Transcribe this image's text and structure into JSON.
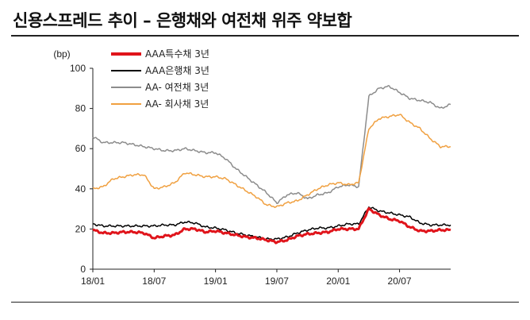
{
  "title": "신용스프레드 추이 – 은행채와 여전채 위주 약보합",
  "chart_data": {
    "type": "line",
    "ylabel": "(bp)",
    "ylim": [
      0,
      100
    ],
    "yticks": [
      0,
      20,
      40,
      60,
      80,
      100
    ],
    "xlim": [
      "2018-01",
      "2020-12"
    ],
    "xticks": [
      "18/01",
      "18/07",
      "19/01",
      "19/07",
      "20/01",
      "20/07"
    ],
    "legend_position": "top-left",
    "grid": false,
    "x": [
      "2018-01",
      "2018-02",
      "2018-03",
      "2018-04",
      "2018-05",
      "2018-06",
      "2018-07",
      "2018-08",
      "2018-09",
      "2018-10",
      "2018-11",
      "2018-12",
      "2019-01",
      "2019-02",
      "2019-03",
      "2019-04",
      "2019-05",
      "2019-06",
      "2019-07",
      "2019-08",
      "2019-09",
      "2019-10",
      "2019-11",
      "2019-12",
      "2020-01",
      "2020-02",
      "2020-03",
      "2020-04",
      "2020-05",
      "2020-06",
      "2020-07",
      "2020-08",
      "2020-09",
      "2020-10",
      "2020-11",
      "2020-12"
    ],
    "series": [
      {
        "name": "AAA특수채 3년",
        "color": "#e0141b",
        "width": 3,
        "values": [
          19.5,
          18,
          18,
          18.5,
          18.5,
          18,
          15.5,
          16.5,
          17,
          20,
          20,
          18.5,
          19,
          18,
          17,
          16,
          15.5,
          14.5,
          13.5,
          14.5,
          16.5,
          17.5,
          18,
          18.5,
          20,
          20,
          20,
          30,
          27,
          25,
          24,
          21,
          19,
          19,
          19.5,
          19.5
        ]
      },
      {
        "name": "AAA은행채 3년",
        "color": "#000000",
        "width": 1.5,
        "values": [
          22.5,
          21.5,
          21.5,
          21.5,
          21.5,
          21.5,
          21.5,
          22,
          22,
          23.5,
          23,
          21,
          20.5,
          19.5,
          18,
          17,
          16,
          15,
          15,
          16,
          18,
          19.5,
          20.5,
          20.5,
          21.5,
          22.5,
          22.5,
          31,
          29,
          28,
          27,
          26,
          23,
          22,
          22,
          22
        ]
      },
      {
        "name": "AA- 여전채 3년",
        "color": "#8c8c8c",
        "width": 1.5,
        "values": [
          66,
          63,
          63,
          63,
          62,
          61,
          60,
          59,
          59,
          60,
          59,
          58,
          58,
          55,
          50,
          46,
          42,
          38,
          33,
          37,
          38,
          35,
          37,
          38,
          41,
          42,
          41,
          86,
          90,
          91,
          88,
          85,
          84,
          83,
          80,
          82
        ]
      },
      {
        "name": "AA- 회사채 3년",
        "color": "#f0a040",
        "width": 1.5,
        "values": [
          40,
          41,
          45,
          46,
          47,
          47,
          40,
          41,
          43,
          48,
          47,
          46,
          46,
          45,
          42,
          39,
          36,
          32,
          31,
          33,
          34,
          37,
          40,
          42,
          43,
          42,
          43,
          70,
          75,
          76,
          77,
          73,
          70,
          65,
          61,
          61
        ]
      }
    ]
  }
}
